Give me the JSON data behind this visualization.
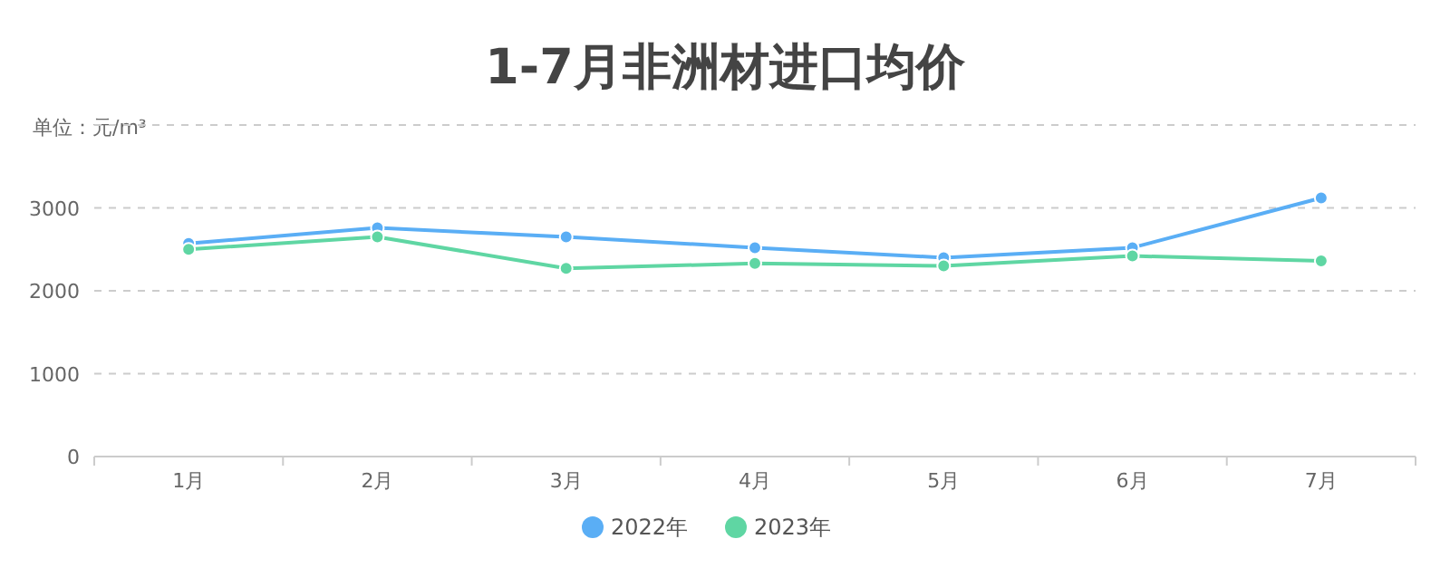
{
  "chart_data": {
    "type": "line",
    "title": "1-7月非洲材进口均价",
    "subtitle": "单位：元/m³",
    "categories": [
      "1月",
      "2月",
      "3月",
      "4月",
      "5月",
      "6月",
      "7月"
    ],
    "series": [
      {
        "name": "2022年",
        "color": "#5aaef5",
        "values": [
          2570,
          2760,
          2650,
          2520,
          2400,
          2520,
          3120
        ]
      },
      {
        "name": "2023年",
        "color": "#5fd6a3",
        "values": [
          2500,
          2650,
          2270,
          2330,
          2300,
          2420,
          2360
        ]
      }
    ],
    "ylim": [
      0,
      4000
    ],
    "yticks": [
      0,
      1000,
      2000,
      3000,
      {
        "value": 4000,
        "label": null
      }
    ],
    "grid": "y",
    "legend": "bottom",
    "marker": "circle",
    "line_style": "solid"
  }
}
